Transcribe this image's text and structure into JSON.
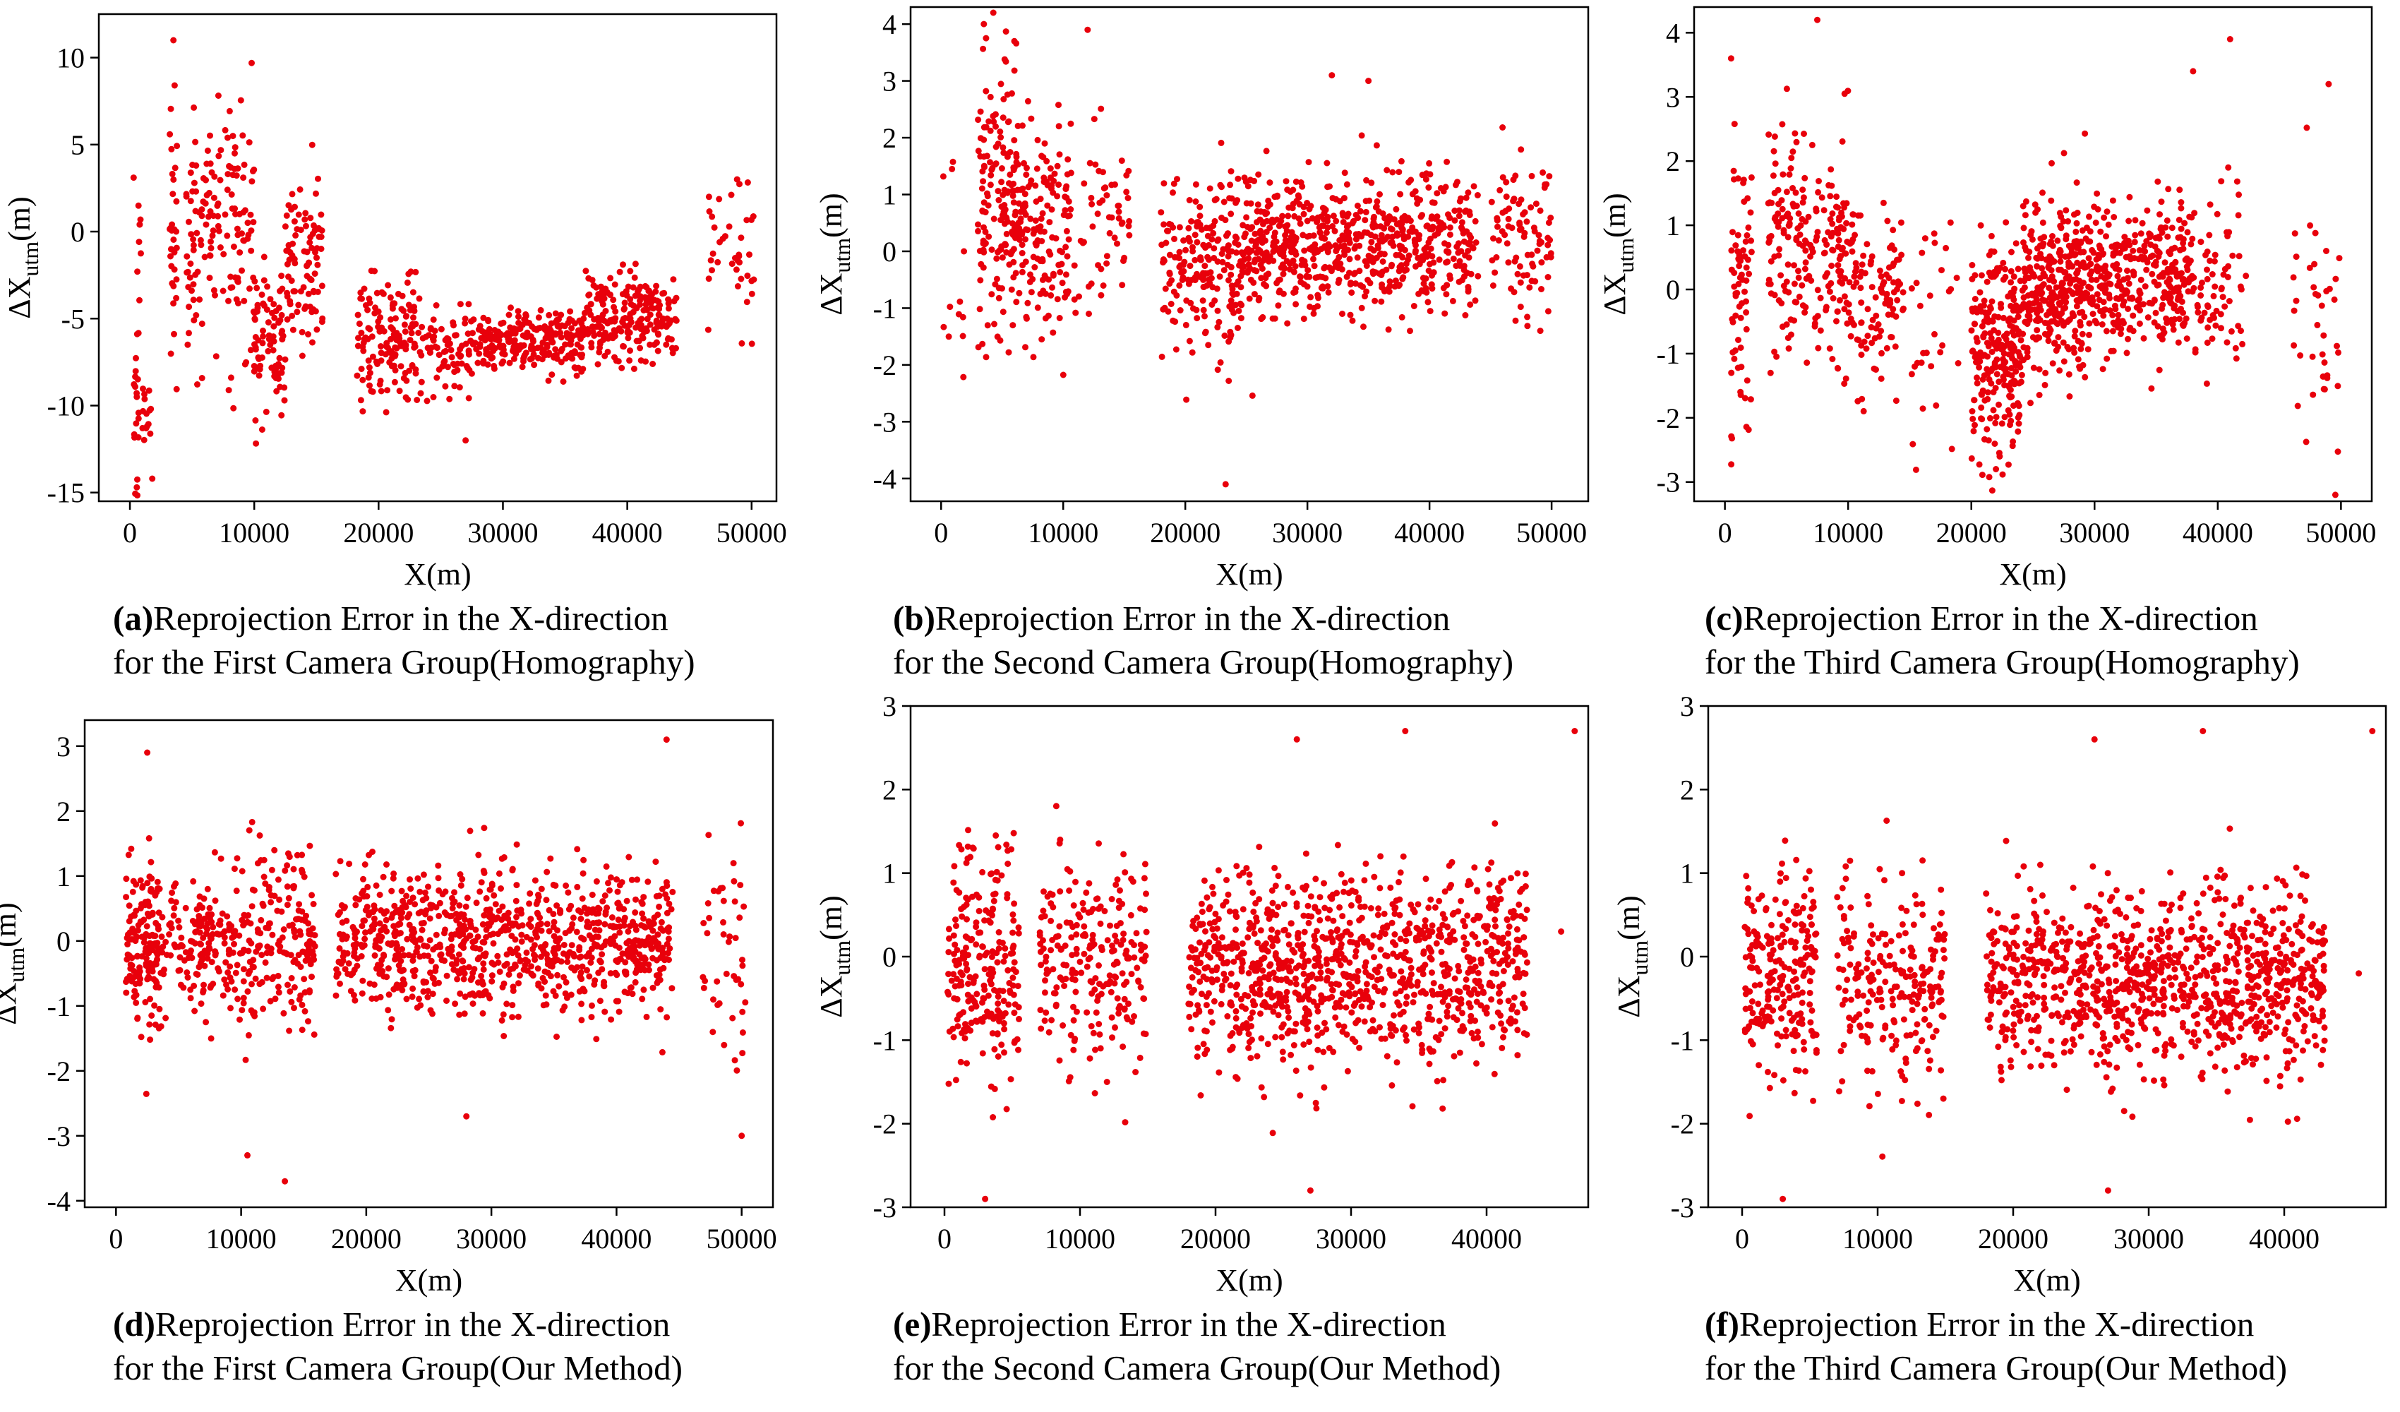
{
  "figure": {
    "marker_color": "#e8000b",
    "axis_color": "#000000"
  },
  "chart_data": [
    {
      "id": "a",
      "type": "scatter",
      "caption_letter": "(a)",
      "caption_line1": "Reprojection Error in the X-direction",
      "caption_line2": "for the First Camera Group(Homography)",
      "xlabel": "X(m)",
      "ylabel_main": "ΔX",
      "ylabel_sub": "utm",
      "ylabel_unit": "(m)",
      "xlim": [
        -2500,
        52000
      ],
      "ylim": [
        -15.5,
        12.5
      ],
      "xticks": [
        0,
        10000,
        20000,
        30000,
        40000,
        50000
      ],
      "yticks": [
        -15,
        -10,
        -5,
        0,
        5,
        10
      ],
      "ytick_labels": [
        "-15",
        "-10",
        "-5",
        "0",
        "5",
        "10"
      ],
      "grid": false,
      "clusters": [
        {
          "x": [
            300,
            700
          ],
          "n": 20,
          "a": -10.5,
          "b": 0,
          "c": 0,
          "s": 2.5
        },
        {
          "x": [
            600,
            900
          ],
          "n": 6,
          "a": 0,
          "b": 0,
          "c": 0,
          "s": 3
        },
        {
          "x": [
            1000,
            1700
          ],
          "n": 14,
          "a": -11,
          "b": 0,
          "c": 0,
          "s": 1.5
        },
        {
          "x": [
            3200,
            3800
          ],
          "n": 30,
          "a": 0,
          "b": 0,
          "c": 0,
          "s": 4
        },
        {
          "x": [
            4500,
            10000
          ],
          "n": 150,
          "a": 0,
          "b": 0,
          "c": 0,
          "s": 3.5
        },
        {
          "x": [
            10000,
            12500
          ],
          "n": 80,
          "a": -6.5,
          "b": 0,
          "c": 0,
          "s": 2.5
        },
        {
          "x": [
            12500,
            15500
          ],
          "n": 90,
          "a": -2,
          "b": 0,
          "c": 0,
          "s": 2.5
        },
        {
          "x": [
            18000,
            23000
          ],
          "n": 140,
          "a": -6.2,
          "b": 0,
          "c": 0,
          "s": 1.8
        },
        {
          "x": [
            23000,
            27500
          ],
          "n": 80,
          "a": -6.8,
          "b": 0,
          "c": 0,
          "s": 1.3
        },
        {
          "x": [
            27500,
            36500
          ],
          "n": 240,
          "a": -6.3,
          "b": 0,
          "c": 0,
          "s": 0.9
        },
        {
          "x": [
            36500,
            44000
          ],
          "n": 220,
          "a": -4.8,
          "b": 0,
          "c": 0,
          "s": 1.3
        },
        {
          "x": [
            46500,
            50200
          ],
          "n": 40,
          "a": -1.5,
          "b": 0,
          "c": 0,
          "s": 2.2
        }
      ],
      "outliers": [
        [
          3500,
          11.0
        ],
        [
          3600,
          8.4
        ],
        [
          300,
          3.1
        ],
        [
          1800,
          -14.2
        ],
        [
          27000,
          -12.0
        ],
        [
          600,
          -2.3
        ]
      ]
    },
    {
      "id": "b",
      "type": "scatter",
      "caption_letter": "(b)",
      "caption_line1": "Reprojection Error in the X-direction",
      "caption_line2": "for the Second Camera Group(Homography)",
      "xlabel": "X(m)",
      "ylabel_main": "ΔX",
      "ylabel_sub": "utm",
      "ylabel_unit": "(m)",
      "xlim": [
        -2500,
        53000
      ],
      "ylim": [
        -4.4,
        4.3
      ],
      "xticks": [
        0,
        10000,
        20000,
        30000,
        40000,
        50000
      ],
      "yticks": [
        -4,
        -3,
        -2,
        -1,
        0,
        1,
        2,
        3,
        4
      ],
      "ytick_labels": [
        "-4",
        "-3",
        "-2",
        "-1",
        "0",
        "1",
        "2",
        "3",
        "4"
      ],
      "grid": false,
      "clusters": [
        {
          "x": [
            0,
            2000
          ],
          "n": 12,
          "a": 0.3,
          "b": 0,
          "c": 0,
          "s": 1.5
        },
        {
          "x": [
            3000,
            6500
          ],
          "n": 170,
          "a": 1.0,
          "b": 0,
          "c": 0,
          "s": 1.2
        },
        {
          "x": [
            6500,
            10500
          ],
          "n": 140,
          "a": 0.4,
          "b": 0,
          "c": 0,
          "s": 1.0
        },
        {
          "x": [
            10500,
            15500
          ],
          "n": 60,
          "a": 0.7,
          "b": 0,
          "c": 0,
          "s": 0.8
        },
        {
          "x": [
            18000,
            25000
          ],
          "n": 220,
          "a": -0.3,
          "b": 0,
          "c": 0,
          "s": 0.8
        },
        {
          "x": [
            25000,
            35000
          ],
          "n": 350,
          "a": 0.1,
          "b": 0,
          "c": 0,
          "s": 0.6
        },
        {
          "x": [
            35000,
            44000
          ],
          "n": 280,
          "a": 0.1,
          "b": 0,
          "c": 0,
          "s": 0.6
        },
        {
          "x": [
            45000,
            50000
          ],
          "n": 90,
          "a": 0.2,
          "b": 0,
          "c": 0,
          "s": 0.8
        }
      ],
      "outliers": [
        [
          3500,
          4.0
        ],
        [
          12000,
          3.9
        ],
        [
          23300,
          -4.1
        ],
        [
          32000,
          3.1
        ],
        [
          35000,
          3.0
        ],
        [
          6000,
          3.7
        ]
      ]
    },
    {
      "id": "c",
      "type": "scatter",
      "caption_letter": "(c)",
      "caption_line1": "Reprojection Error in the X-direction",
      "caption_line2": "for the Third Camera Group(Homography)",
      "xlabel": "X(m)",
      "ylabel_main": "ΔX",
      "ylabel_sub": "utm",
      "ylabel_unit": "(m)",
      "xlim": [
        -2500,
        52500
      ],
      "ylim": [
        -3.3,
        4.4
      ],
      "xticks": [
        0,
        10000,
        20000,
        30000,
        40000,
        50000
      ],
      "yticks": [
        -3,
        -2,
        -1,
        0,
        1,
        2,
        3,
        4
      ],
      "ytick_labels": [
        "-3",
        "-2",
        "-1",
        "0",
        "1",
        "2",
        "3",
        "4"
      ],
      "grid": false,
      "clusters": [
        {
          "x": [
            500,
            2200
          ],
          "n": 70,
          "a": -0.3,
          "b": 0,
          "c": 0,
          "s": 1.1
        },
        {
          "x": [
            3500,
            6500
          ],
          "n": 100,
          "a": 0.9,
          "b": 0,
          "c": 0,
          "s": 0.9
        },
        {
          "x": [
            6500,
            10000
          ],
          "n": 110,
          "a": 0.6,
          "b": 0,
          "c": 0,
          "s": 0.9
        },
        {
          "x": [
            10000,
            14500
          ],
          "n": 110,
          "a": -0.1,
          "b": 0,
          "c": 0,
          "s": 0.7
        },
        {
          "x": [
            15000,
            19000
          ],
          "n": 30,
          "a": -0.6,
          "b": 0,
          "c": 0,
          "s": 0.9
        },
        {
          "x": [
            20000,
            24000
          ],
          "n": 240,
          "a": -0.9,
          "b": 0,
          "c": 0,
          "s": 0.9
        },
        {
          "x": [
            24000,
            29000
          ],
          "n": 300,
          "a": 0,
          "b": 0,
          "c": 0,
          "s": 0.7
        },
        {
          "x": [
            29000,
            38000
          ],
          "n": 360,
          "a": 0.2,
          "b": 0,
          "c": 0,
          "s": 0.6
        },
        {
          "x": [
            38000,
            42500
          ],
          "n": 70,
          "a": -0.1,
          "b": 0,
          "c": 0,
          "s": 0.8
        },
        {
          "x": [
            46000,
            50000
          ],
          "n": 40,
          "a": -0.5,
          "b": 0,
          "c": 0,
          "s": 0.9
        }
      ],
      "outliers": [
        [
          7500,
          4.2
        ],
        [
          500,
          3.6
        ],
        [
          41000,
          3.9
        ],
        [
          38000,
          3.4
        ],
        [
          49000,
          3.2
        ],
        [
          22000,
          -2.8
        ]
      ]
    },
    {
      "id": "d",
      "type": "scatter",
      "caption_letter": "(d)",
      "caption_line1": "Reprojection Error in the X-direction",
      "caption_line2": "for the First Camera Group(Our Method)",
      "xlabel": "X(m)",
      "ylabel_main": "ΔX",
      "ylabel_sub": "utm",
      "ylabel_unit": "(m)",
      "xlim": [
        -2500,
        52500
      ],
      "ylim": [
        -4.1,
        3.4
      ],
      "xticks": [
        0,
        10000,
        20000,
        30000,
        40000,
        50000
      ],
      "yticks": [
        -4,
        -3,
        -2,
        -1,
        0,
        1,
        2,
        3
      ],
      "ytick_labels": [
        "-4",
        "-3",
        "-2",
        "-1",
        "0",
        "1",
        "2",
        "3"
      ],
      "grid": false,
      "clusters": [
        {
          "x": [
            800,
            3500
          ],
          "n": 160,
          "a": 0,
          "b": 0,
          "c": 0,
          "s": 0.65
        },
        {
          "x": [
            3500,
            9000
          ],
          "n": 140,
          "a": 0,
          "b": 0,
          "c": 0,
          "s": 0.55
        },
        {
          "x": [
            9000,
            16000
          ],
          "n": 210,
          "a": 0,
          "b": 0,
          "c": 0,
          "s": 0.7
        },
        {
          "x": [
            17500,
            44500
          ],
          "n": 900,
          "a": 0,
          "b": 0,
          "c": 0,
          "s": 0.55
        },
        {
          "x": [
            46800,
            50500
          ],
          "n": 45,
          "a": 0,
          "b": 0,
          "c": 0,
          "s": 0.9
        }
      ],
      "outliers": [
        [
          2500,
          2.9
        ],
        [
          44000,
          3.1
        ],
        [
          13500,
          -3.7
        ],
        [
          10500,
          -3.3
        ],
        [
          50000,
          -3.0
        ],
        [
          28000,
          -2.7
        ]
      ]
    },
    {
      "id": "e",
      "type": "scatter",
      "caption_letter": "(e)",
      "caption_line1": "Reprojection Error in the X-direction",
      "caption_line2": "for the Second Camera Group(Our Method)",
      "xlabel": "X(m)",
      "ylabel_main": "ΔX",
      "ylabel_sub": "utm",
      "ylabel_unit": "(m)",
      "xlim": [
        -2500,
        47500
      ],
      "ylim": [
        -3.0,
        3.0
      ],
      "xticks": [
        0,
        10000,
        20000,
        30000,
        40000
      ],
      "yticks": [
        -3,
        -2,
        -1,
        0,
        1,
        2,
        3
      ],
      "ytick_labels": [
        "-3",
        "-2",
        "-1",
        "0",
        "1",
        "2",
        "3"
      ],
      "grid": false,
      "clusters": [
        {
          "x": [
            200,
            5500
          ],
          "n": 230,
          "a": -0.1,
          "b": 0,
          "c": 0,
          "s": 0.7
        },
        {
          "x": [
            7000,
            15000
          ],
          "n": 230,
          "a": -0.1,
          "b": 0,
          "c": 0,
          "s": 0.65
        },
        {
          "x": [
            18000,
            43000
          ],
          "n": 1000,
          "a": -0.1,
          "b": 0,
          "c": 0,
          "s": 0.6
        }
      ],
      "outliers": [
        [
          46500,
          2.7
        ],
        [
          45500,
          0.3
        ],
        [
          26000,
          2.6
        ],
        [
          34000,
          2.7
        ],
        [
          3000,
          -2.9
        ],
        [
          27000,
          -2.8
        ]
      ]
    },
    {
      "id": "f",
      "type": "scatter",
      "caption_letter": "(f)",
      "caption_line1": "Reprojection Error in the X-direction",
      "caption_line2": "for the Third Camera Group(Our Method)",
      "xlabel": "X(m)",
      "ylabel_main": "ΔX",
      "ylabel_sub": "utm",
      "ylabel_unit": "(m)",
      "xlim": [
        -2500,
        47500
      ],
      "ylim": [
        -3.0,
        3.0
      ],
      "xticks": [
        0,
        10000,
        20000,
        30000,
        40000
      ],
      "yticks": [
        -3,
        -2,
        -1,
        0,
        1,
        2,
        3
      ],
      "ytick_labels": [
        "-3",
        "-2",
        "-1",
        "0",
        "1",
        "2",
        "3"
      ],
      "grid": false,
      "clusters": [
        {
          "x": [
            200,
            5500
          ],
          "n": 230,
          "a": -0.3,
          "b": 0,
          "c": 0,
          "s": 0.65
        },
        {
          "x": [
            7000,
            15000
          ],
          "n": 230,
          "a": -0.3,
          "b": 0,
          "c": 0,
          "s": 0.6
        },
        {
          "x": [
            18000,
            43000
          ],
          "n": 1000,
          "a": -0.3,
          "b": 0,
          "c": 0,
          "s": 0.55
        }
      ],
      "outliers": [
        [
          46500,
          2.7
        ],
        [
          45500,
          -0.2
        ],
        [
          26000,
          2.6
        ],
        [
          34000,
          2.7
        ],
        [
          3000,
          -2.9
        ],
        [
          27000,
          -2.8
        ]
      ]
    }
  ]
}
